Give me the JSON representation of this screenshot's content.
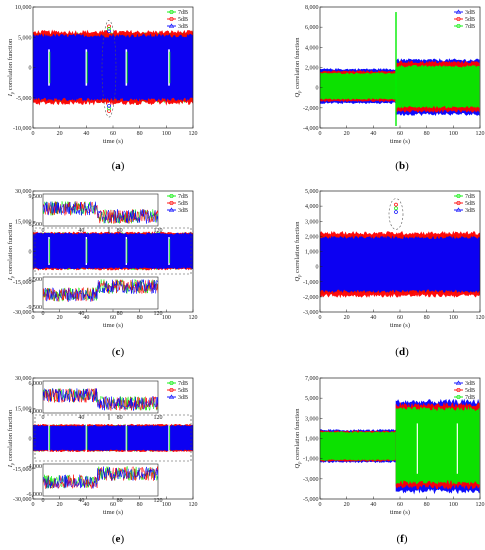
{
  "chart_data": [
    {
      "id": "a",
      "caption": "a",
      "type": "line",
      "xlabel": "time (s)",
      "ylabel": "I",
      "ylabel_sub": "p",
      "ylabel_rest": " correlation function",
      "xlim": [
        0,
        120
      ],
      "ylim": [
        -10000,
        10000
      ],
      "xticks": [
        0,
        20,
        40,
        60,
        80,
        100,
        120
      ],
      "yticks": [
        -10000,
        -5000,
        0,
        5000,
        10000
      ],
      "ytick_labels": [
        "-10,000",
        "-5,000",
        "0",
        "5,000",
        "10,000"
      ],
      "series": [
        {
          "name": "7dB",
          "color": "#00ee00",
          "marker": "circle",
          "band": [
            -5500,
            5500
          ]
        },
        {
          "name": "5dB",
          "color": "#ff0000",
          "marker": "circle",
          "band": [
            -5800,
            5800
          ]
        },
        {
          "name": "3dB",
          "color": "#0000ff",
          "marker": "triangle",
          "band": [
            -5200,
            5200
          ]
        }
      ],
      "gaps": [
        12,
        40,
        70,
        102
      ],
      "spike": {
        "x": 57,
        "values": [
          6800,
          -7200
        ]
      }
    },
    {
      "id": "b",
      "caption": "b",
      "type": "line",
      "xlabel": "time (s)",
      "ylabel": "Q",
      "ylabel_sub": "p",
      "ylabel_rest": " correlation function",
      "xlim": [
        0,
        120
      ],
      "ylim": [
        -4000,
        8000
      ],
      "xticks": [
        0,
        20,
        40,
        60,
        80,
        100,
        120
      ],
      "yticks": [
        -4000,
        -2000,
        0,
        2000,
        4000,
        6000,
        8000
      ],
      "ytick_labels": [
        "-4,000",
        "-2,000",
        "0",
        "2,000",
        "4,000",
        "6,000",
        "8,000"
      ],
      "series": [
        {
          "name": "3dB",
          "color": "#0000ff",
          "marker": "triangle",
          "band_before": [
            -1500,
            1800
          ],
          "band_after": [
            -2600,
            2700
          ]
        },
        {
          "name": "5dB",
          "color": "#ff0000",
          "marker": "circle",
          "band_before": [
            -1300,
            1600
          ],
          "band_after": [
            -2300,
            2500
          ]
        },
        {
          "name": "7dB",
          "color": "#00ee00",
          "marker": "circle",
          "band_before": [
            -1100,
            1400
          ],
          "band_after": [
            -1900,
            2100
          ]
        }
      ],
      "step_at": 57,
      "spike": {
        "x": 57,
        "values": [
          7500,
          -3800
        ]
      }
    },
    {
      "id": "c",
      "caption": "c",
      "type": "line",
      "xlabel": "time (s)",
      "ylabel": "I",
      "ylabel_sub": "p",
      "ylabel_rest": " correlation function",
      "xlim": [
        0,
        120
      ],
      "ylim": [
        -30000,
        30000
      ],
      "xticks": [
        0,
        20,
        40,
        60,
        80,
        100,
        120
      ],
      "yticks": [
        -30000,
        -15000,
        0,
        15000,
        30000
      ],
      "ytick_labels": [
        "-30,000",
        "-15,000",
        "0",
        "15,000",
        "30,000"
      ],
      "series": [
        {
          "name": "7dB",
          "color": "#00ee00",
          "marker": "circle",
          "band": [
            -7000,
            7000
          ]
        },
        {
          "name": "5dB",
          "color": "#ff0000",
          "marker": "circle",
          "band": [
            -7200,
            7200
          ]
        },
        {
          "name": "3dB",
          "color": "#0000ff",
          "marker": "triangle",
          "band": [
            -6800,
            6800
          ]
        }
      ],
      "gaps": [
        12,
        40,
        70,
        102
      ],
      "insets": [
        {
          "ylim": [
            6500,
            9500
          ],
          "ytick_labels": [
            "9,500",
            "6,500"
          ],
          "xticks": [
            0,
            40,
            80,
            120
          ]
        },
        {
          "ylim": [
            -9500,
            -6500
          ],
          "ytick_labels": [
            "-6,500",
            "-9,500"
          ],
          "xticks": [
            0,
            40,
            80,
            120
          ]
        }
      ]
    },
    {
      "id": "d",
      "caption": "d",
      "type": "line",
      "xlabel": "time (s)",
      "ylabel": "Q",
      "ylabel_sub": "p",
      "ylabel_rest": " correlation function",
      "xlim": [
        0,
        120
      ],
      "ylim": [
        -3000,
        5000
      ],
      "xticks": [
        0,
        20,
        40,
        60,
        80,
        100,
        120
      ],
      "yticks": [
        -3000,
        -2000,
        -1000,
        0,
        1000,
        2000,
        3000,
        4000,
        5000
      ],
      "ytick_labels": [
        "-3,000",
        "-2,000",
        "-1,000",
        "0",
        "1,000",
        "2,000",
        "3,000",
        "4,000",
        "5,000"
      ],
      "series": [
        {
          "name": "7dB",
          "color": "#00ee00",
          "marker": "circle",
          "band": [
            -1700,
            2000
          ]
        },
        {
          "name": "5dB",
          "color": "#ff0000",
          "marker": "circle",
          "band": [
            -1900,
            2200
          ]
        },
        {
          "name": "3dB",
          "color": "#0000ff",
          "marker": "triangle",
          "band": [
            -1600,
            1900
          ]
        }
      ],
      "spike": {
        "x": 57,
        "values": [
          4100
        ]
      }
    },
    {
      "id": "e",
      "caption": "e",
      "type": "line",
      "xlabel": "time (s)",
      "ylabel": "I",
      "ylabel_sub": "p",
      "ylabel_rest": " correlation function",
      "xlim": [
        0,
        120
      ],
      "ylim": [
        -30000,
        30000
      ],
      "xticks": [
        0,
        20,
        40,
        60,
        80,
        100,
        120
      ],
      "yticks": [
        -30000,
        -15000,
        0,
        15000,
        30000
      ],
      "ytick_labels": [
        "-30,000",
        "-15,000",
        "0",
        "15,000",
        "30,000"
      ],
      "series": [
        {
          "name": "7dB",
          "color": "#00ee00",
          "marker": "circle",
          "band": [
            -5000,
            5000
          ]
        },
        {
          "name": "5dB",
          "color": "#ff0000",
          "marker": "circle",
          "band": [
            -5200,
            5200
          ]
        },
        {
          "name": "3dB",
          "color": "#0000ff",
          "marker": "triangle",
          "band": [
            -4800,
            4800
          ]
        }
      ],
      "gaps": [
        12,
        40,
        70,
        102
      ],
      "insets": [
        {
          "ylim": [
            4000,
            6000
          ],
          "ytick_labels": [
            "6,000",
            "4,000"
          ],
          "xticks": [
            0,
            40,
            80,
            120
          ]
        },
        {
          "ylim": [
            -6000,
            -4000
          ],
          "ytick_labels": [
            "-4,000",
            "-6,000"
          ],
          "xticks": [
            0,
            40,
            80,
            120
          ]
        }
      ]
    },
    {
      "id": "f",
      "caption": "f",
      "type": "line",
      "xlabel": "time (s)",
      "ylabel": "Q",
      "ylabel_sub": "p",
      "ylabel_rest": " correlation function",
      "xlim": [
        0,
        120
      ],
      "ylim": [
        -5000,
        7000
      ],
      "xticks": [
        0,
        20,
        40,
        60,
        80,
        100,
        120
      ],
      "yticks": [
        -5000,
        -3000,
        -1000,
        1000,
        3000,
        5000,
        7000
      ],
      "ytick_labels": [
        "-5,000",
        "-3,000",
        "-1,000",
        "1,000",
        "3,000",
        "5,000",
        "7,000"
      ],
      "series": [
        {
          "name": "3dB",
          "color": "#0000ff",
          "marker": "triangle",
          "band_before": [
            -1300,
            1800
          ],
          "band_after": [
            -4200,
            4600
          ]
        },
        {
          "name": "5dB",
          "color": "#ff0000",
          "marker": "circle",
          "band_before": [
            -1200,
            1700
          ],
          "band_after": [
            -3800,
            4300
          ]
        },
        {
          "name": "7dB",
          "color": "#00ee00",
          "marker": "circle",
          "band_before": [
            -1100,
            1600
          ],
          "band_after": [
            -3300,
            3900
          ]
        }
      ],
      "step_at": 57,
      "gaps": [
        73,
        103
      ]
    }
  ]
}
